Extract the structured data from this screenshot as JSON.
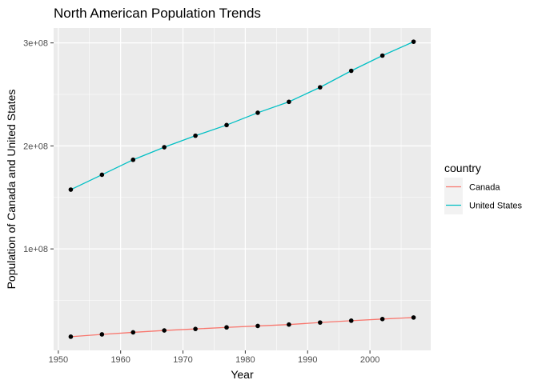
{
  "chart_data": {
    "type": "line",
    "title": "North American Population Trends",
    "xlabel": "Year",
    "ylabel": "Population of Canada and United States",
    "x": [
      1952,
      1957,
      1962,
      1967,
      1972,
      1977,
      1982,
      1987,
      1992,
      1997,
      2002,
      2007
    ],
    "series": [
      {
        "name": "Canada",
        "color": "#F8766D",
        "values": [
          14785584,
          17010154,
          18985849,
          20819767,
          22284500,
          23796400,
          25201900,
          26549700,
          28523502,
          30305843,
          31902268,
          33390141
        ]
      },
      {
        "name": "United States",
        "color": "#00BFC4",
        "values": [
          157553000,
          171984000,
          186538000,
          198712000,
          209896000,
          220239000,
          232187835,
          242803533,
          256894189,
          272911760,
          287675526,
          301139947
        ]
      }
    ],
    "point_color": "#000000",
    "xlim": [
      1949.25,
      2009.75
    ],
    "ylim": [
      1455366,
      314470165
    ],
    "x_ticks": [
      {
        "value": 1950,
        "label": "1950"
      },
      {
        "value": 1960,
        "label": "1960"
      },
      {
        "value": 1970,
        "label": "1970"
      },
      {
        "value": 1980,
        "label": "1980"
      },
      {
        "value": 1990,
        "label": "1990"
      },
      {
        "value": 2000,
        "label": "2000"
      }
    ],
    "y_ticks": [
      {
        "value": 100000000,
        "label": "1e+08"
      },
      {
        "value": 200000000,
        "label": "2e+08"
      },
      {
        "value": 300000000,
        "label": "3e+08"
      }
    ],
    "panel_background": "#EBEBEB",
    "grid": true,
    "legend": {
      "title": "country",
      "position": "right",
      "entries": [
        "Canada",
        "United States"
      ]
    }
  }
}
